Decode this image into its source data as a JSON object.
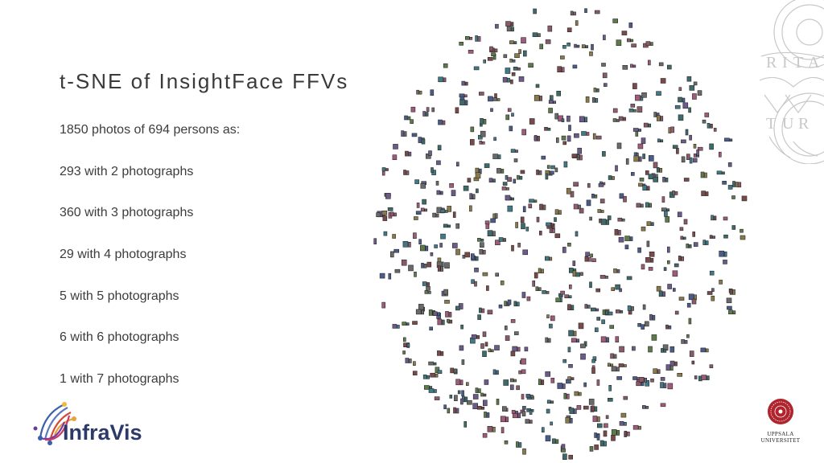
{
  "slide": {
    "title": "t-SNE of InsightFace FFVs",
    "bullets": [
      "1850 photos of  694 persons as:",
      "293 with 2 photographs",
      "360 with 3 photographs",
      "29 with 4 photographs",
      "5 with 5 photographs",
      "6 with 6 photographs",
      "1 with 7 photographs"
    ]
  },
  "logos": {
    "infravis": "InfraVis",
    "uppsala_line1": "UPPSALA",
    "uppsala_line2": "UNIVERSITET"
  },
  "colors": {
    "title_text": "#3a3a3a",
    "body_text": "#3c3c3c",
    "infravis_text": "#2c3a6a",
    "uppsala_red": "#b0242e",
    "seal_gray": "#c8c8c8"
  },
  "thumbnail_palette": [
    "#6b5a8a",
    "#3f7a86",
    "#8a5a6a",
    "#5d7a4a",
    "#4a5d8a",
    "#8a7a4a",
    "#6a6a6a",
    "#a05a7a",
    "#3d6a6a",
    "#7a4a4a"
  ]
}
